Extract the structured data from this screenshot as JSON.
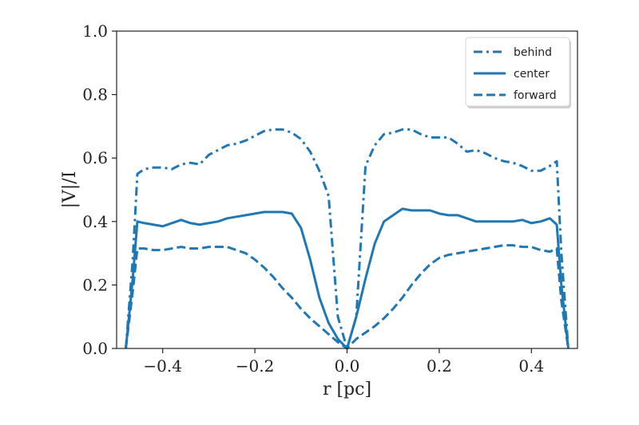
{
  "chart_data": {
    "type": "line",
    "xlabel": "r [pc]",
    "ylabel": "|V|/I",
    "xlim": [
      -0.5,
      0.5
    ],
    "ylim": [
      0.0,
      1.0
    ],
    "x_ticks": [
      -0.4,
      -0.2,
      0.0,
      0.2,
      0.4
    ],
    "x_tick_labels": [
      "−0.4",
      "−0.2",
      "0.0",
      "0.2",
      "0.4"
    ],
    "y_ticks": [
      0.0,
      0.2,
      0.4,
      0.6,
      0.8,
      1.0
    ],
    "y_tick_labels": [
      "0.0",
      "0.2",
      "0.4",
      "0.6",
      "0.8",
      "1.0"
    ],
    "grid": false,
    "legend_position": "top-right",
    "color": "#1f77b4",
    "series": [
      {
        "name": "behind",
        "linestyle": "dashdot",
        "x": [
          -0.48,
          -0.465,
          -0.455,
          -0.44,
          -0.42,
          -0.4,
          -0.38,
          -0.36,
          -0.34,
          -0.32,
          -0.3,
          -0.28,
          -0.26,
          -0.24,
          -0.22,
          -0.2,
          -0.18,
          -0.16,
          -0.14,
          -0.12,
          -0.1,
          -0.08,
          -0.06,
          -0.04,
          -0.02,
          0.0,
          0.02,
          0.04,
          0.06,
          0.08,
          0.1,
          0.12,
          0.14,
          0.16,
          0.18,
          0.2,
          0.22,
          0.24,
          0.26,
          0.28,
          0.3,
          0.32,
          0.34,
          0.36,
          0.38,
          0.4,
          0.42,
          0.44,
          0.455,
          0.465,
          0.48
        ],
        "y": [
          0.0,
          0.28,
          0.55,
          0.565,
          0.57,
          0.57,
          0.565,
          0.58,
          0.585,
          0.58,
          0.61,
          0.625,
          0.64,
          0.645,
          0.655,
          0.67,
          0.685,
          0.69,
          0.69,
          0.68,
          0.66,
          0.62,
          0.56,
          0.48,
          0.1,
          0.0,
          0.1,
          0.575,
          0.64,
          0.675,
          0.68,
          0.69,
          0.69,
          0.675,
          0.665,
          0.665,
          0.665,
          0.645,
          0.62,
          0.625,
          0.615,
          0.6,
          0.59,
          0.585,
          0.575,
          0.56,
          0.56,
          0.575,
          0.59,
          0.3,
          0.0
        ]
      },
      {
        "name": "center",
        "linestyle": "solid",
        "x": [
          -0.48,
          -0.465,
          -0.455,
          -0.44,
          -0.42,
          -0.4,
          -0.38,
          -0.36,
          -0.34,
          -0.32,
          -0.3,
          -0.28,
          -0.26,
          -0.24,
          -0.22,
          -0.2,
          -0.18,
          -0.16,
          -0.14,
          -0.12,
          -0.1,
          -0.08,
          -0.06,
          -0.04,
          -0.02,
          0.0,
          0.02,
          0.04,
          0.06,
          0.08,
          0.1,
          0.12,
          0.14,
          0.16,
          0.18,
          0.2,
          0.22,
          0.24,
          0.26,
          0.28,
          0.3,
          0.32,
          0.34,
          0.36,
          0.38,
          0.4,
          0.42,
          0.44,
          0.455,
          0.465,
          0.48
        ],
        "y": [
          0.0,
          0.22,
          0.4,
          0.395,
          0.39,
          0.385,
          0.395,
          0.405,
          0.395,
          0.39,
          0.395,
          0.4,
          0.41,
          0.415,
          0.42,
          0.425,
          0.43,
          0.43,
          0.43,
          0.425,
          0.38,
          0.28,
          0.16,
          0.08,
          0.03,
          0.0,
          0.1,
          0.22,
          0.33,
          0.4,
          0.42,
          0.44,
          0.435,
          0.435,
          0.435,
          0.425,
          0.42,
          0.42,
          0.41,
          0.4,
          0.4,
          0.4,
          0.4,
          0.4,
          0.405,
          0.395,
          0.4,
          0.41,
          0.39,
          0.2,
          0.0
        ]
      },
      {
        "name": "forward",
        "linestyle": "dashed",
        "x": [
          -0.48,
          -0.465,
          -0.455,
          -0.44,
          -0.42,
          -0.4,
          -0.38,
          -0.36,
          -0.34,
          -0.32,
          -0.3,
          -0.28,
          -0.26,
          -0.24,
          -0.22,
          -0.2,
          -0.18,
          -0.16,
          -0.14,
          -0.12,
          -0.1,
          -0.08,
          -0.06,
          -0.04,
          -0.02,
          0.0,
          0.02,
          0.04,
          0.06,
          0.08,
          0.1,
          0.12,
          0.14,
          0.16,
          0.18,
          0.2,
          0.22,
          0.24,
          0.26,
          0.28,
          0.3,
          0.32,
          0.34,
          0.36,
          0.38,
          0.4,
          0.42,
          0.44,
          0.455,
          0.465,
          0.48
        ],
        "y": [
          0.0,
          0.18,
          0.315,
          0.315,
          0.31,
          0.31,
          0.315,
          0.32,
          0.315,
          0.315,
          0.32,
          0.32,
          0.32,
          0.31,
          0.3,
          0.28,
          0.255,
          0.225,
          0.19,
          0.16,
          0.125,
          0.095,
          0.07,
          0.045,
          0.02,
          0.0,
          0.03,
          0.05,
          0.07,
          0.095,
          0.125,
          0.16,
          0.2,
          0.235,
          0.265,
          0.285,
          0.295,
          0.3,
          0.305,
          0.31,
          0.315,
          0.32,
          0.325,
          0.325,
          0.32,
          0.32,
          0.31,
          0.305,
          0.315,
          0.15,
          0.0
        ]
      }
    ]
  }
}
